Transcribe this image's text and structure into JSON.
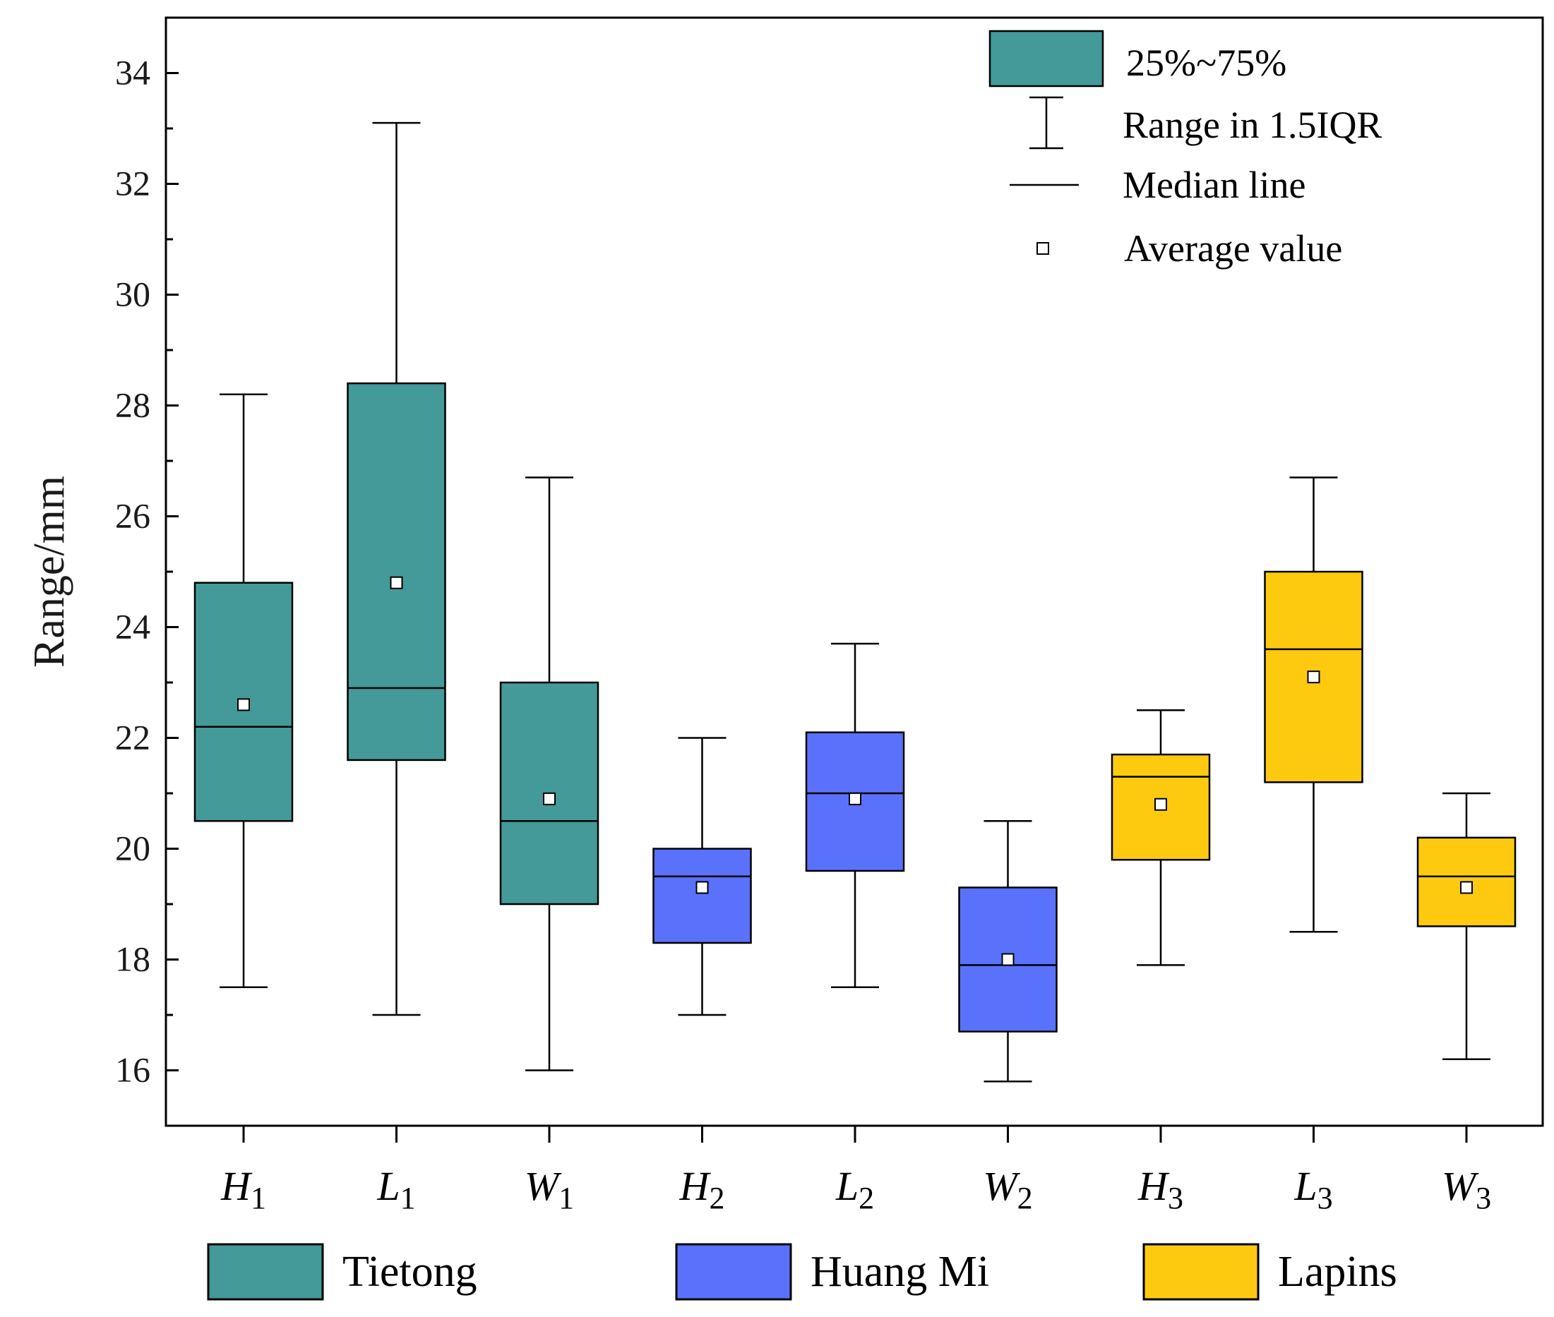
{
  "chart_data": {
    "type": "box",
    "ylabel": "Range/mm",
    "ylim": [
      15,
      35
    ],
    "yticks": [
      16,
      18,
      20,
      22,
      24,
      26,
      28,
      30,
      32,
      34
    ],
    "categories": [
      {
        "base": "H",
        "sub": "1"
      },
      {
        "base": "L",
        "sub": "1"
      },
      {
        "base": "W",
        "sub": "1"
      },
      {
        "base": "H",
        "sub": "2"
      },
      {
        "base": "L",
        "sub": "2"
      },
      {
        "base": "W",
        "sub": "2"
      },
      {
        "base": "H",
        "sub": "3"
      },
      {
        "base": "L",
        "sub": "3"
      },
      {
        "base": "W",
        "sub": "3"
      }
    ],
    "boxes": [
      {
        "whisker_low": 17.5,
        "q1": 20.5,
        "median": 22.2,
        "q3": 24.8,
        "whisker_high": 28.2,
        "mean": 22.6,
        "group": 0
      },
      {
        "whisker_low": 17.0,
        "q1": 21.6,
        "median": 22.9,
        "q3": 28.4,
        "whisker_high": 33.1,
        "mean": 24.8,
        "group": 0
      },
      {
        "whisker_low": 16.0,
        "q1": 19.0,
        "median": 20.5,
        "q3": 23.0,
        "whisker_high": 26.7,
        "mean": 20.9,
        "group": 0
      },
      {
        "whisker_low": 17.0,
        "q1": 18.3,
        "median": 19.5,
        "q3": 20.0,
        "whisker_high": 22.0,
        "mean": 19.3,
        "group": 1
      },
      {
        "whisker_low": 17.5,
        "q1": 19.6,
        "median": 21.0,
        "q3": 22.1,
        "whisker_high": 23.7,
        "mean": 20.9,
        "group": 1
      },
      {
        "whisker_low": 15.8,
        "q1": 16.7,
        "median": 17.9,
        "q3": 19.3,
        "whisker_high": 20.5,
        "mean": 18.0,
        "group": 1
      },
      {
        "whisker_low": 17.9,
        "q1": 19.8,
        "median": 21.3,
        "q3": 21.7,
        "whisker_high": 22.5,
        "mean": 20.8,
        "group": 2
      },
      {
        "whisker_low": 18.5,
        "q1": 21.2,
        "median": 23.6,
        "q3": 25.0,
        "whisker_high": 26.7,
        "mean": 23.1,
        "group": 2
      },
      {
        "whisker_low": 16.2,
        "q1": 18.6,
        "median": 19.5,
        "q3": 20.2,
        "whisker_high": 21.0,
        "mean": 19.3,
        "group": 2
      }
    ],
    "groups": [
      {
        "name": "Tietong",
        "color": "#439a98"
      },
      {
        "name": "Huang Mi",
        "color": "#5a72fb"
      },
      {
        "name": "Lapins",
        "color": "#fdca10"
      }
    ],
    "legend": {
      "placement": "top-right",
      "box_label": "25%~75%",
      "range_label": "Range in 1.5IQR",
      "median_label": "Median line",
      "mean_label": "Average value"
    }
  }
}
